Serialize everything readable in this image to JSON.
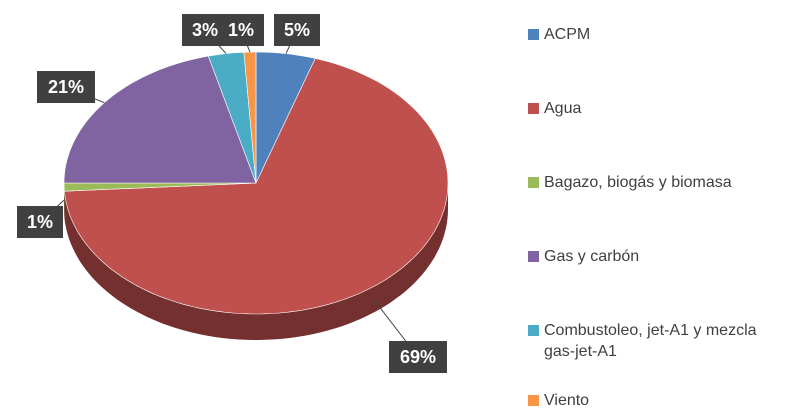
{
  "chart_data": {
    "type": "pie",
    "categories": [
      "ACPM",
      "Agua",
      "Bagazo, biogás y biomasa",
      "Gas y carbón",
      "Combustoleo, jet-A1 y mezcla gas-jet-A1",
      "Viento"
    ],
    "values": [
      5,
      69,
      1,
      21,
      3,
      1
    ],
    "value_labels": [
      "5%",
      "69%",
      "1%",
      "21%",
      "3%",
      "1%"
    ],
    "colors": [
      "#4f81bd",
      "#c0504d",
      "#9bbb59",
      "#8064a2",
      "#4bacc6",
      "#f79646"
    ],
    "legend": "right"
  }
}
